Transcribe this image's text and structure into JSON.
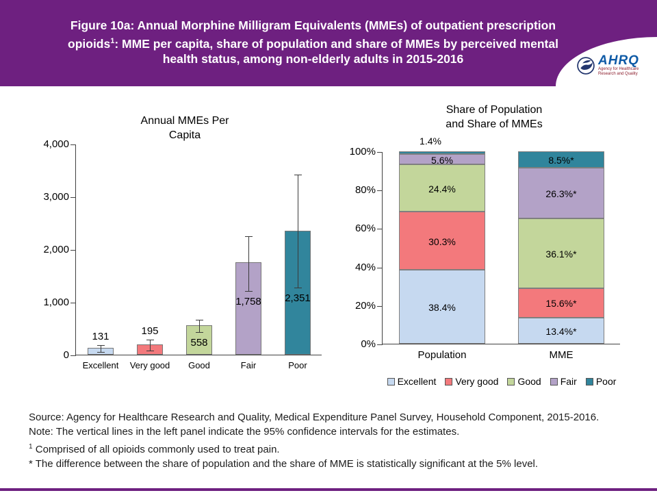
{
  "header": {
    "title_line1": "Figure 10a: Annual Morphine Milligram Equivalents (MMEs) of outpatient prescription",
    "title_line2_pre": "opioids",
    "title_line2_sup": "1",
    "title_line2_post": ": MME per capita, share of population and share of MMEs by perceived mental",
    "title_line3": "health status, among non-elderly adults in 2015-2016",
    "logo_abbr": "AHRQ",
    "logo_tagline": "Agency for Healthcare Research and Quality"
  },
  "chart_data": [
    {
      "type": "bar",
      "title": "Annual MMEs Per Capita",
      "categories": [
        "Excellent",
        "Very good",
        "Good",
        "Fair",
        "Poor"
      ],
      "values": [
        131,
        195,
        558,
        1758,
        2351
      ],
      "value_labels": [
        "131",
        "195",
        "558",
        "1,758",
        "2,351"
      ],
      "ci_low": [
        70,
        90,
        440,
        1220,
        1285
      ],
      "ci_high": [
        190,
        300,
        675,
        2260,
        3430
      ],
      "ci_note": "vertical lines are 95% confidence intervals",
      "bar_colors": [
        "#c6d9f0",
        "#f3797c",
        "#c3d69b",
        "#b3a2c7",
        "#31859c"
      ],
      "xlabel": "",
      "ylabel": "",
      "ylim": [
        0,
        4000
      ],
      "yticks": [
        0,
        1000,
        2000,
        3000,
        4000
      ],
      "ytick_labels": [
        "0",
        "1,000",
        "2,000",
        "3,000",
        "4,000"
      ],
      "grid": false,
      "legend_position": "none"
    },
    {
      "type": "stacked-bar",
      "title": "Share of Population and Share of MMEs",
      "categories": [
        "Population",
        "MME"
      ],
      "series": [
        {
          "name": "Excellent",
          "color": "#c6d9f0",
          "values": [
            38.4,
            13.4
          ],
          "value_labels": [
            "38.4%",
            "13.4%*"
          ]
        },
        {
          "name": "Very good",
          "color": "#f3797c",
          "values": [
            30.3,
            15.6
          ],
          "value_labels": [
            "30.3%",
            "15.6%*"
          ]
        },
        {
          "name": "Good",
          "color": "#c3d69b",
          "values": [
            24.4,
            36.1
          ],
          "value_labels": [
            "24.4%",
            "36.1%*"
          ]
        },
        {
          "name": "Fair",
          "color": "#b3a2c7",
          "values": [
            5.6,
            26.3
          ],
          "value_labels": [
            "5.6%",
            "26.3%*"
          ]
        },
        {
          "name": "Poor",
          "color": "#31859c",
          "values": [
            1.4,
            8.5
          ],
          "value_labels": [
            "1.4%",
            "8.5%*"
          ]
        }
      ],
      "outside_label": {
        "text": "1.4%",
        "category": "Population",
        "series": "Poor"
      },
      "xlabel": "",
      "ylabel": "",
      "ylim": [
        0,
        100
      ],
      "yticks": [
        0,
        20,
        40,
        60,
        80,
        100
      ],
      "ytick_labels": [
        "0%",
        "20%",
        "40%",
        "60%",
        "80%",
        "100%"
      ],
      "grid": false,
      "legend_position": "bottom"
    }
  ],
  "footnotes": {
    "source": "Source: Agency for Healthcare Research and Quality, Medical Expenditure Panel Survey, Household Component, 2015-2016.",
    "note": "Note: The vertical lines in the left panel indicate the 95% confidence intervals for the estimates.",
    "fn1_sup": "1",
    "fn1_text": "Comprised of all opioids commonly used to treat pain.",
    "fn2": "* The difference between the share of population and the share of MME is statistically significant at the 5% level."
  }
}
